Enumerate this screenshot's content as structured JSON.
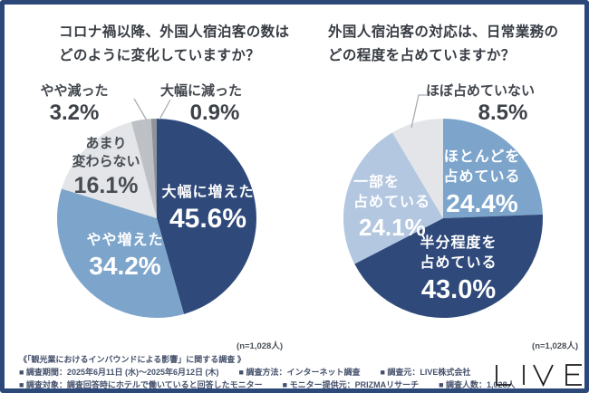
{
  "canvas": {
    "border_color": "#2c4878",
    "background": "#ffffff",
    "navy": "#2f4a7a",
    "medium_blue": "#7da5cb",
    "light_blue": "#b3c7e1",
    "light_gray": "#e3e5e8"
  },
  "chart_data": [
    {
      "type": "pie",
      "title": "コロナ禍以降、外国人宿泊客の数はどのように変化していますか？",
      "title_lines": [
        "コロナ禍以降、外国人宿泊客の数は",
        "どのように変化していますか？"
      ],
      "sample_label": "(n=1,028人)",
      "unit": "%",
      "total": 100,
      "start_angle": "top",
      "direction": "clockwise",
      "slices": [
        {
          "label": "大幅に増えた",
          "pct_label": "45.6%",
          "value": 45.6,
          "color": "#2f4a7a",
          "label_position": "inside"
        },
        {
          "label": "やや増えた",
          "pct_label": "34.2%",
          "value": 34.2,
          "color": "#7da5cb",
          "label_position": "inside"
        },
        {
          "label": "あまり変わらない",
          "label_lines": [
            "あまり",
            "変わらない"
          ],
          "pct_label": "16.1%",
          "value": 16.1,
          "color": "#e3e5e8",
          "label_position": "inside"
        },
        {
          "label": "やや減った",
          "pct_label": "3.2%",
          "value": 3.2,
          "color": "#bdc1c6",
          "label_position": "outside"
        },
        {
          "label": "大幅に減った",
          "pct_label": "0.9%",
          "value": 0.9,
          "color": "#8e949b",
          "label_position": "outside"
        }
      ]
    },
    {
      "type": "pie",
      "title": "外国人宿泊客の対応は、日常業務のどの程度を占めていますか？",
      "title_lines": [
        "外国人宿泊客の対応は、日常業務の",
        "どの程度を占めていますか？"
      ],
      "sample_label": "(n=1,028人)",
      "unit": "%",
      "total": 100,
      "start_angle": "top",
      "direction": "clockwise",
      "slices": [
        {
          "label": "ほとんどを占めている",
          "label_lines": [
            "ほとんどを",
            "占めている"
          ],
          "pct_label": "24.4%",
          "value": 24.4,
          "color": "#7da5cb",
          "label_position": "inside"
        },
        {
          "label": "半分程度を占めている",
          "label_lines": [
            "半分程度を",
            "占めている"
          ],
          "pct_label": "43.0%",
          "value": 43.0,
          "color": "#2f4a7a",
          "label_position": "inside"
        },
        {
          "label": "一部を占めている",
          "label_lines": [
            "一部を",
            "占めている"
          ],
          "pct_label": "24.1%",
          "value": 24.1,
          "color": "#b3c7e1",
          "label_position": "inside"
        },
        {
          "label": "ほぼ占めていない",
          "pct_label": "8.5%",
          "value": 8.5,
          "color": "#e3e5e8",
          "label_position": "outside"
        }
      ]
    }
  ],
  "footer": {
    "line1": "《「観光業におけるインバウンドによる影響」に関する調査 》",
    "line2": [
      "■ 調査期間：2025年6月11日 (水)～2025年6月12日 (木)",
      "■ 調査方法：インターネット調査",
      "■ 調査元：LIVE株式会社"
    ],
    "line3": [
      "■ 調査対象：調査回答時にホテルで働いていると回答したモニター",
      "■ モニター提供元：PRIZMAリサーチ",
      "■ 調査人数：1,028人"
    ]
  },
  "logo": {
    "text": "LIVE"
  }
}
